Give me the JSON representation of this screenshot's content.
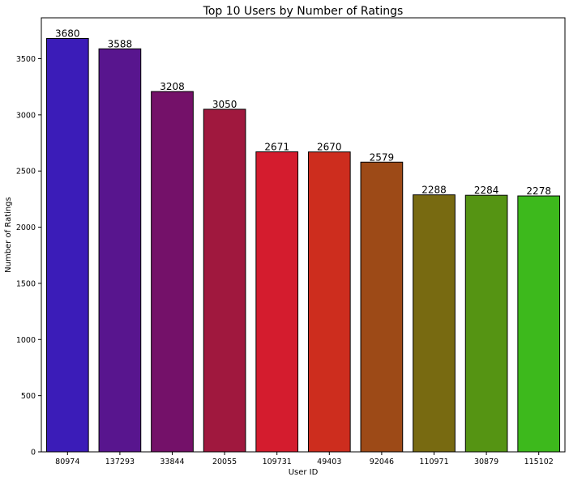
{
  "chart_data": {
    "type": "bar",
    "title": "Top 10 Users by Number of Ratings",
    "xlabel": "User ID",
    "ylabel": "Number of Ratings",
    "categories": [
      "80974",
      "137293",
      "33844",
      "20055",
      "109731",
      "49403",
      "92046",
      "110971",
      "30879",
      "115102"
    ],
    "values": [
      3680,
      3588,
      3208,
      3050,
      2671,
      2670,
      2579,
      2288,
      2284,
      2278
    ],
    "ylim": [
      0,
      3864
    ],
    "yticks": [
      0,
      500,
      1000,
      1500,
      2000,
      2500,
      3000,
      3500
    ],
    "colors": [
      "#3b1cb8",
      "#58158e",
      "#741169",
      "#a0183e",
      "#d41c2e",
      "#cd2d1e",
      "#9d4a17",
      "#786a11",
      "#559413",
      "#3db91c"
    ],
    "grid": false,
    "legend": "none"
  }
}
